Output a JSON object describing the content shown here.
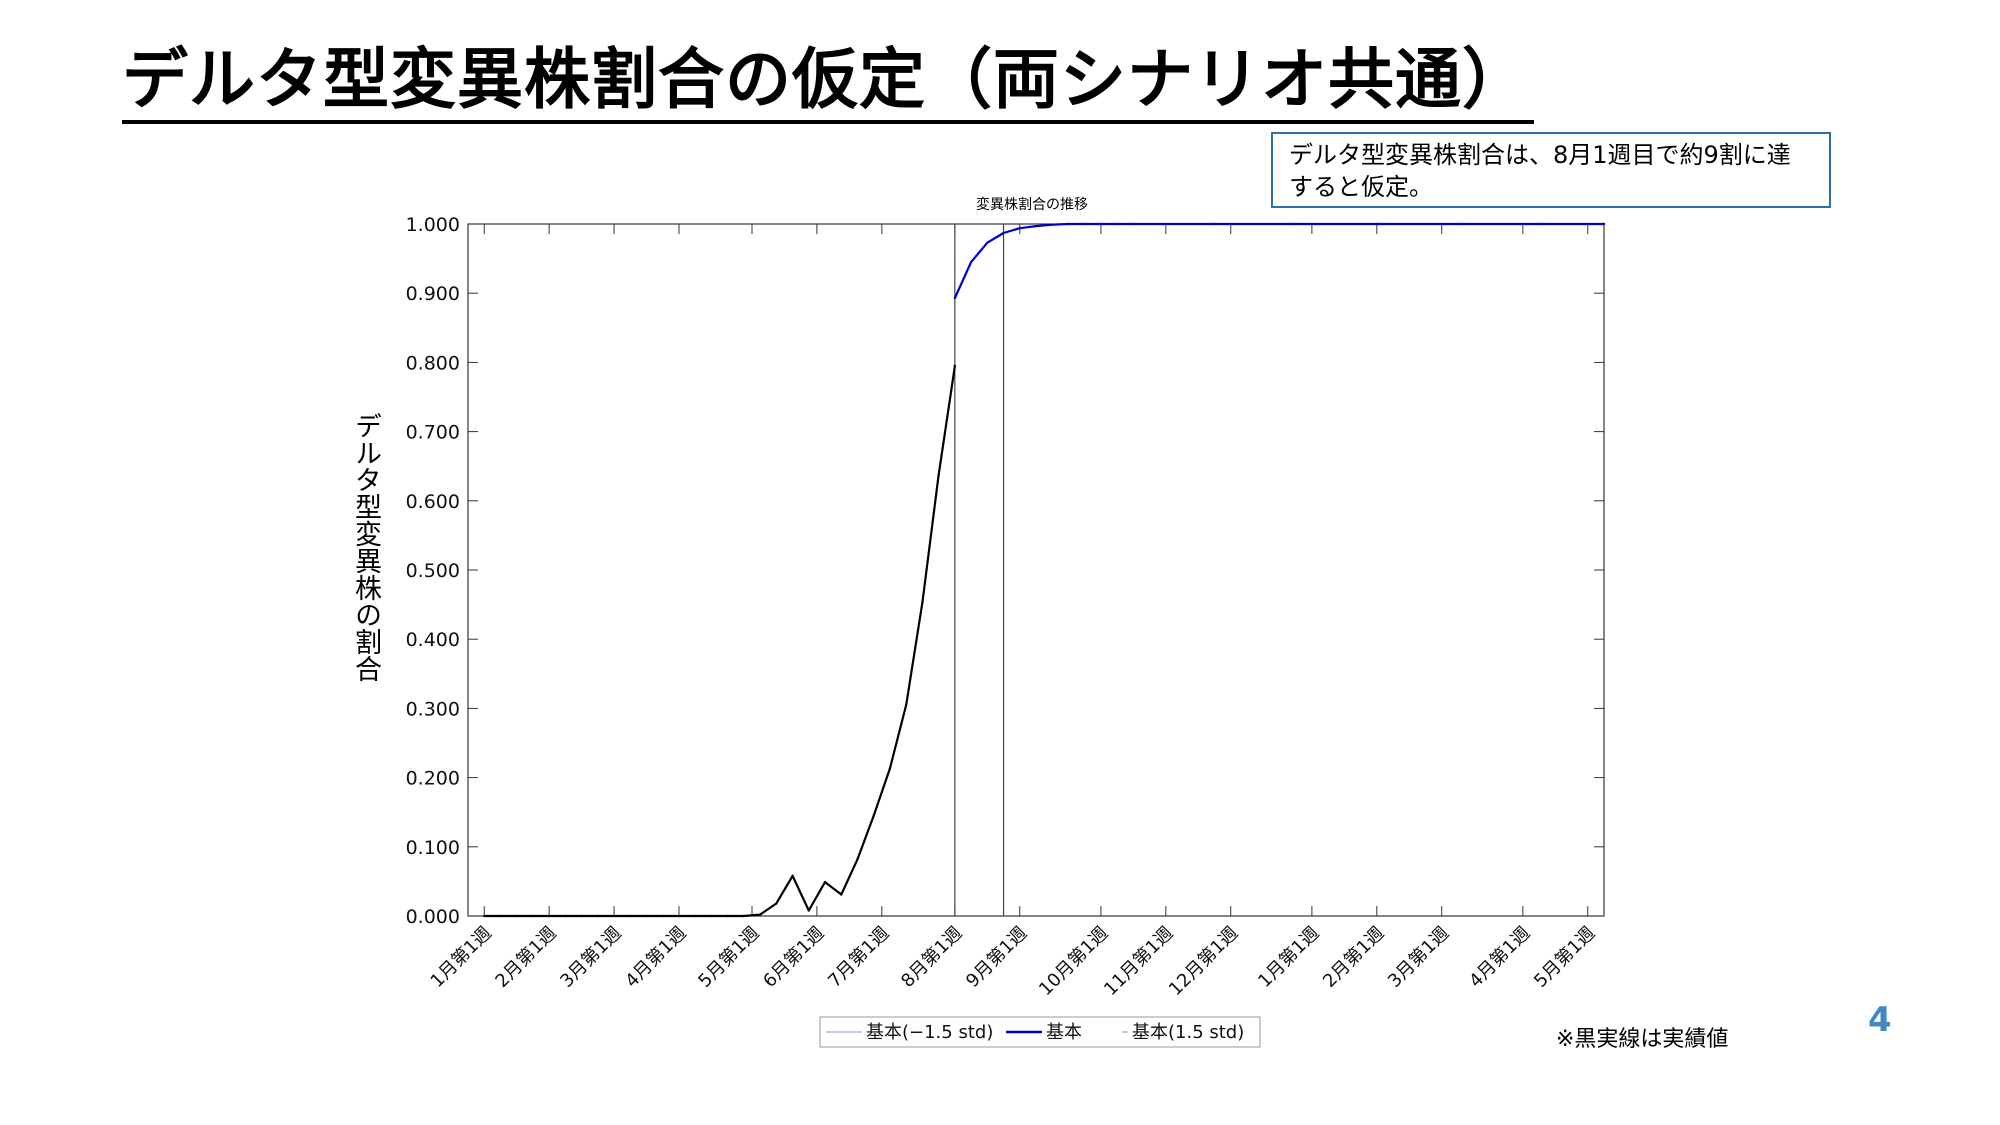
{
  "slide": {
    "title": "デルタ型変異株割合の仮定（両シナリオ共通）",
    "note": "デルタ型変異株割合は、8月1週目で約9割に達すると仮定。",
    "footnote": "※黒実線は実績値",
    "page_number": "4"
  },
  "chart_data": {
    "type": "line",
    "title": "変異株割合の推移",
    "ylabel": "デルタ型変異株の割合",
    "xlabel": "",
    "ylim": [
      0,
      1
    ],
    "x_range_weeks": [
      -1,
      69
    ],
    "ytick_labels": [
      "0.000",
      "0.100",
      "0.200",
      "0.300",
      "0.400",
      "0.500",
      "0.600",
      "0.700",
      "0.800",
      "0.900",
      "1.000"
    ],
    "xtick_positions_weeks": [
      0,
      4,
      8,
      12,
      16.5,
      20.5,
      24.5,
      29,
      33,
      38,
      42,
      46,
      51,
      55,
      59,
      64,
      68
    ],
    "xtick_labels": [
      "1月第1週",
      "2月第1週",
      "3月第1週",
      "4月第1週",
      "5月第1週",
      "6月第1週",
      "7月第1週",
      "8月第1週",
      "9月第1週",
      "10月第1週",
      "11月第1週",
      "12月第1週",
      "1月第1週",
      "2月第1週",
      "3月第1週",
      "4月第1週",
      "5月第1週"
    ],
    "vertical_lines_weeks": [
      29,
      32
    ],
    "grid": false,
    "legend_position": "bottom-center",
    "legend": [
      {
        "name": "基本(−1.5 std)",
        "color": "#b5b5e8"
      },
      {
        "name": "基本",
        "color": "#0000cc"
      },
      {
        "name": "基本(1.5 std)",
        "color": "#b5b5e8"
      }
    ],
    "series": [
      {
        "name": "実績値",
        "color": "#000000",
        "x": [
          0,
          1,
          2,
          3,
          4,
          5,
          6,
          7,
          8,
          9,
          10,
          11,
          12,
          13,
          14,
          15,
          16,
          17,
          18,
          19,
          20,
          21,
          22,
          23,
          24,
          25,
          26,
          27,
          28,
          29
        ],
        "values": [
          0,
          0,
          0,
          0,
          0,
          0,
          0,
          0,
          0,
          0,
          0,
          0,
          0,
          0,
          0,
          0,
          0,
          0.002,
          0.018,
          0.058,
          0.008,
          0.049,
          0.031,
          0.082,
          0.145,
          0.213,
          0.305,
          0.453,
          0.637,
          0.795
        ]
      },
      {
        "name": "基本",
        "color": "#0000cc",
        "x": [
          29,
          30,
          31,
          32,
          33,
          34,
          35,
          36,
          37,
          38,
          39,
          40,
          45,
          50,
          55,
          60,
          65,
          69
        ],
        "values": [
          0.893,
          0.945,
          0.973,
          0.987,
          0.994,
          0.997,
          0.999,
          1.0,
          1.0,
          1.0,
          1.0,
          1.0,
          1.0,
          1.0,
          1.0,
          1.0,
          1.0,
          1.0
        ]
      }
    ]
  }
}
